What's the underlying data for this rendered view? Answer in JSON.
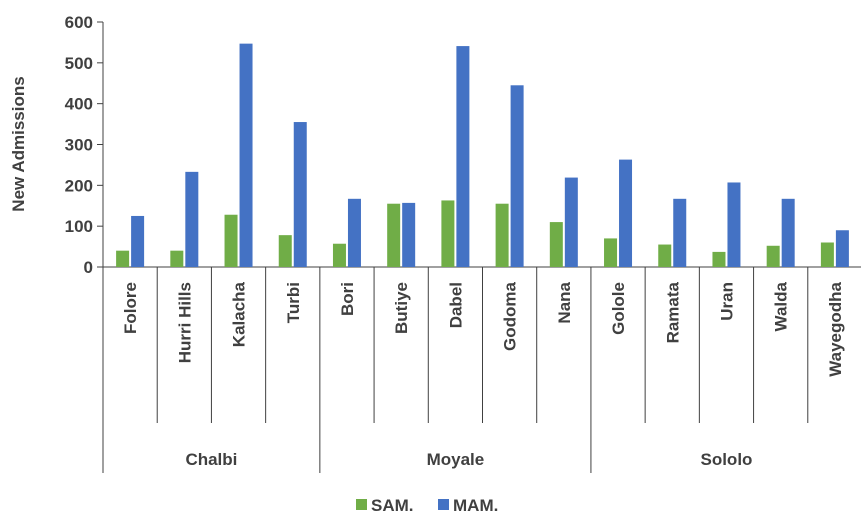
{
  "chart_data": {
    "type": "bar",
    "title": "",
    "xlabel": "",
    "ylabel": "New Admissions",
    "ylim": [
      0,
      600
    ],
    "yticks": [
      0,
      100,
      200,
      300,
      400,
      500,
      600
    ],
    "grid": false,
    "legend_position": "bottom",
    "groups": [
      {
        "name": "Chalbi",
        "categories": [
          "Folore",
          "Hurri Hills",
          "Kalacha",
          "Turbi"
        ]
      },
      {
        "name": "Moyale",
        "categories": [
          "Bori",
          "Butiye",
          "Dabel",
          "Godoma",
          "Nana"
        ]
      },
      {
        "name": "Sololo",
        "categories": [
          "Golole",
          "Ramata",
          "Uran",
          "Walda",
          "Wayegodha"
        ]
      }
    ],
    "categories": [
      "Folore",
      "Hurri Hills",
      "Kalacha",
      "Turbi",
      "Bori",
      "Butiye",
      "Dabel",
      "Godoma",
      "Nana",
      "Golole",
      "Ramata",
      "Uran",
      "Walda",
      "Wayegodha"
    ],
    "series": [
      {
        "name": "SAM.",
        "color": "#70ad47",
        "values": [
          40,
          40,
          128,
          78,
          57,
          155,
          163,
          155,
          110,
          70,
          55,
          37,
          52,
          60
        ]
      },
      {
        "name": "MAM.",
        "color": "#4472c4",
        "values": [
          125,
          233,
          547,
          355,
          167,
          157,
          541,
          445,
          219,
          263,
          167,
          207,
          167,
          90
        ]
      }
    ]
  }
}
